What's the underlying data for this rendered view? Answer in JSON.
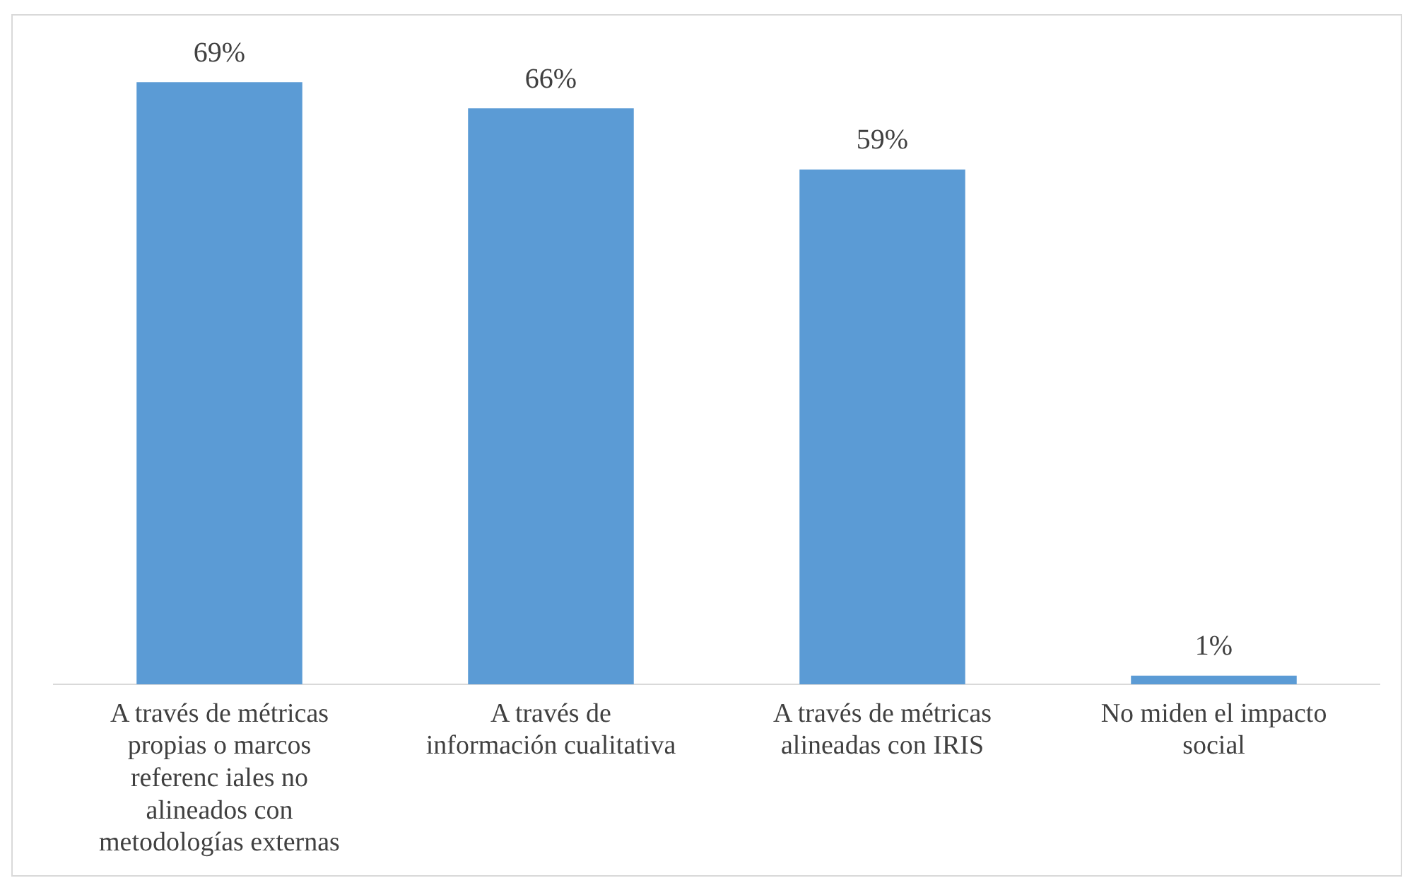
{
  "chart_data": {
    "type": "bar",
    "categories": [
      "A través de métricas propias o marcos referenc iales no alineados con metodologías externas",
      "A través de información cualitativa",
      "A través de métricas alineadas con IRIS",
      "No miden el impacto social"
    ],
    "values": [
      69,
      66,
      59,
      1
    ],
    "value_labels": [
      "69%",
      "66%",
      "59%",
      "1%"
    ],
    "color": "#5b9bd5",
    "grid": false,
    "legend": false
  }
}
